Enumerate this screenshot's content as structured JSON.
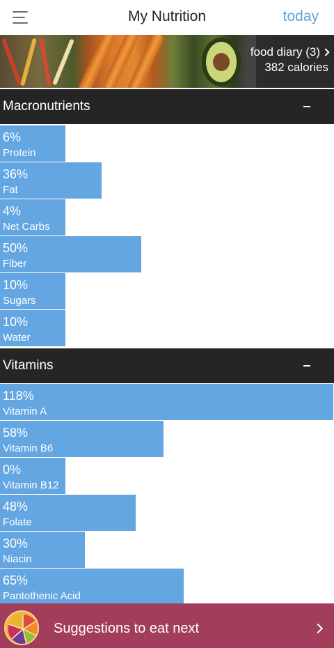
{
  "header": {
    "title": "My Nutrition",
    "today_label": "today",
    "menu_icon": "menu-icon"
  },
  "banner": {
    "diary_label": "food diary (3)",
    "calories_label": "382 calories"
  },
  "macronutrients": {
    "title": "Macronutrients",
    "toggle": "collapse",
    "items": [
      {
        "pct": 6,
        "pct_label": "6%",
        "label": "Protein"
      },
      {
        "pct": 36,
        "pct_label": "36%",
        "label": "Fat"
      },
      {
        "pct": 4,
        "pct_label": "4%",
        "label": "Net Carbs"
      },
      {
        "pct": 50,
        "pct_label": "50%",
        "label": "Fiber"
      },
      {
        "pct": 10,
        "pct_label": "10%",
        "label": "Sugars"
      },
      {
        "pct": 10,
        "pct_label": "10%",
        "label": "Water"
      }
    ]
  },
  "vitamins": {
    "title": "Vitamins",
    "toggle": "collapse",
    "items": [
      {
        "pct": 118,
        "pct_label": "118%",
        "label": "Vitamin A"
      },
      {
        "pct": 58,
        "pct_label": "58%",
        "label": "Vitamin B6"
      },
      {
        "pct": 0,
        "pct_label": "0%",
        "label": "Vitamin B12"
      },
      {
        "pct": 48,
        "pct_label": "48%",
        "label": "Folate"
      },
      {
        "pct": 30,
        "pct_label": "30%",
        "label": "Niacin"
      },
      {
        "pct": 65,
        "pct_label": "65%",
        "label": "Pantothenic Acid"
      }
    ]
  },
  "suggestions": {
    "label": "Suggestions to eat next",
    "icon": "fruit-slice-icon"
  },
  "colors": {
    "accent": "#5aa3dd",
    "bar": "#63a6e2",
    "section_header": "#252525",
    "suggest_bar": "#a33d5c"
  }
}
